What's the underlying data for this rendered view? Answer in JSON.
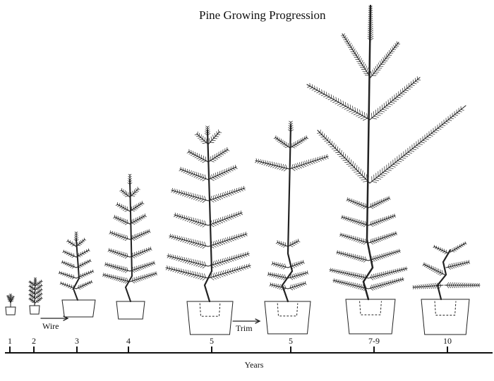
{
  "title": "Pine Growing Progression",
  "axis": {
    "label": "Years",
    "ticks": [
      "1",
      "2",
      "3",
      "4",
      "5",
      "5",
      "7-9",
      "10"
    ]
  },
  "annotations": {
    "wire": "Wire",
    "trim": "Trim"
  }
}
